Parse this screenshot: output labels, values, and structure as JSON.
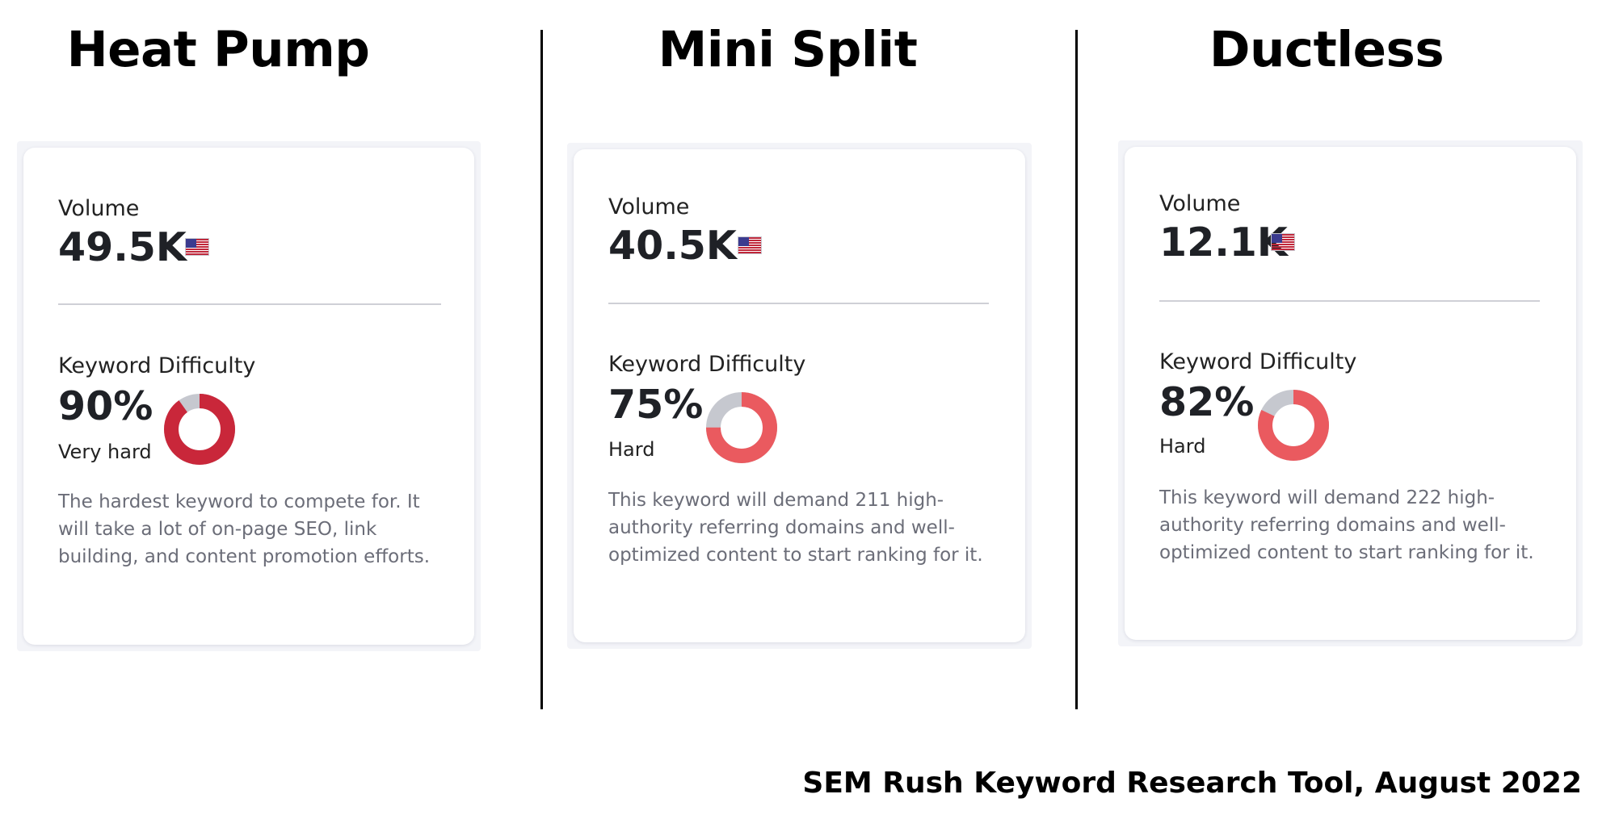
{
  "columns": [
    {
      "title": "Heat Pump",
      "volume_label": "Volume",
      "volume_value": "49.5K",
      "flag_icon": "us-flag-icon",
      "kd_label": "Keyword Difficulty",
      "kd_percent": "90%",
      "kd_fraction": 0.9,
      "kd_rating": "Very hard",
      "kd_color": "#c9273a",
      "kd_track_color": "#c6c8cf",
      "description": "The hardest keyword to compete for. It will take a lot of on-page SEO, link building, and content promotion efforts."
    },
    {
      "title": "Mini Split",
      "volume_label": "Volume",
      "volume_value": "40.5K",
      "flag_icon": "us-flag-icon",
      "kd_label": "Keyword Difficulty",
      "kd_percent": "75%",
      "kd_fraction": 0.75,
      "kd_rating": "Hard",
      "kd_color": "#ea5a5f",
      "kd_track_color": "#c6c8cf",
      "description": "This keyword will demand 211 high-authority referring domains and well-optimized content to start ranking for it."
    },
    {
      "title": "Ductless",
      "volume_label": "Volume",
      "volume_value": "12.1K",
      "flag_icon": "us-flag-icon",
      "kd_label": "Keyword Difficulty",
      "kd_percent": "82%",
      "kd_fraction": 0.82,
      "kd_rating": "Hard",
      "kd_color": "#ea5a5f",
      "kd_track_color": "#c6c8cf",
      "description": "This keyword will demand 222 high-authority referring domains and well-optimized content to start ranking for it."
    }
  ],
  "caption": "SEM Rush Keyword Research Tool, August 2022"
}
